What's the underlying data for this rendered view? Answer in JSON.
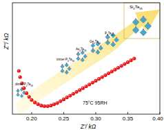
{
  "chart_data": {
    "type": "scatter",
    "x_label": "Z'/ kΩ",
    "y_label": "Z''/ kΩ",
    "annotations": [
      "75°C 95RH",
      "dimer-P2Ta18",
      "trimer-P6Ta36",
      "As4Ta28",
      "Ge4Ta24",
      "P4Ta24",
      "Si4Ta18"
    ],
    "series": [
      {
        "name": "75°C 95RH",
        "color": "#e8191e",
        "marker": "circle",
        "x": [
          0.18,
          0.182,
          0.185,
          0.188,
          0.192,
          0.196,
          0.2,
          0.205,
          0.21,
          0.215,
          0.22,
          0.225,
          0.23,
          0.235,
          0.24,
          0.245,
          0.25,
          0.255,
          0.26,
          0.265,
          0.27,
          0.275,
          0.28,
          0.285,
          0.29,
          0.295,
          0.3,
          0.305,
          0.31,
          0.315,
          0.32,
          0.325,
          0.33,
          0.335,
          0.34,
          0.345,
          0.35,
          0.355,
          0.36
        ],
        "values": [
          0.07,
          0.06,
          0.05,
          0.042,
          0.034,
          0.028,
          0.023,
          0.019,
          0.016,
          0.014,
          0.013,
          0.013,
          0.014,
          0.016,
          0.018,
          0.021,
          0.024,
          0.027,
          0.03,
          0.033,
          0.036,
          0.039,
          0.042,
          0.045,
          0.048,
          0.051,
          0.054,
          0.057,
          0.06,
          0.063,
          0.066,
          0.069,
          0.072,
          0.075,
          0.078,
          0.081,
          0.084,
          0.087,
          0.09
        ]
      }
    ],
    "xlim": [
      0.17,
      0.4
    ],
    "xticks": [
      {
        "value": 0.2,
        "label": "0.20"
      },
      {
        "value": 0.25,
        "label": "0.25"
      },
      {
        "value": 0.3,
        "label": "0.30"
      },
      {
        "value": 0.35,
        "label": "0.35"
      },
      {
        "value": 0.4,
        "label": "0.40"
      }
    ],
    "ylim": [
      0,
      0.18
    ],
    "tick_labels": "x",
    "grid": false
  }
}
